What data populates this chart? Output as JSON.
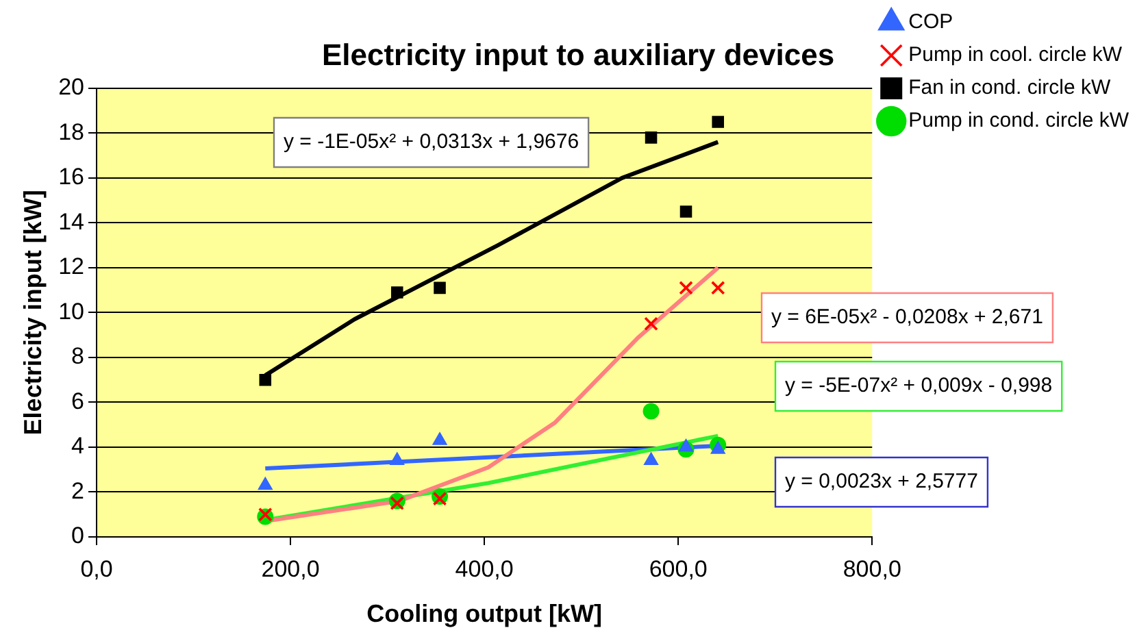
{
  "chart_data": {
    "type": "scatter",
    "title": "Electricity input to auxiliary devices",
    "xlabel": "Cooling output [kW]",
    "ylabel": "Electricity input [kW]",
    "xlim": [
      0,
      800
    ],
    "xticks": [
      {
        "value": 0,
        "label": "0,0"
      },
      {
        "value": 200,
        "label": "200,0"
      },
      {
        "value": 400,
        "label": "400,0"
      },
      {
        "value": 600,
        "label": "600,0"
      },
      {
        "value": 800,
        "label": "800,0"
      }
    ],
    "ylim": [
      0,
      20
    ],
    "yticks": [
      0,
      2,
      4,
      6,
      8,
      10,
      12,
      14,
      16,
      18,
      20
    ],
    "grid": "y",
    "legend": "top right",
    "x": [
      174,
      310,
      354,
      572,
      608,
      641
    ],
    "series": [
      {
        "name": "COP",
        "color": "#3366ff",
        "marker": "triangle",
        "values": [
          2.3,
          3.4,
          4.3,
          3.4,
          4.0,
          3.9
        ]
      },
      {
        "name": "Pump in cool. circle kW",
        "color": "#ff0000",
        "marker": "cross",
        "values": [
          1.0,
          1.5,
          1.7,
          9.5,
          11.1,
          11.1
        ]
      },
      {
        "name": "Fan in cond. circle kW",
        "color": "#000000",
        "marker": "square",
        "values": [
          7.0,
          10.9,
          11.1,
          17.8,
          14.5,
          18.5
        ]
      },
      {
        "name": "Pump in cond. circle kW",
        "color": "#00dd00",
        "marker": "circle",
        "values": [
          0.9,
          1.6,
          1.8,
          5.6,
          3.9,
          4.1
        ]
      },
      {
        "type": "line",
        "color": "#000000",
        "marker": "none",
        "x": [
          174,
          266,
          414,
          542,
          641
        ],
        "values": [
          7.2,
          9.7,
          13.0,
          16.0,
          17.6
        ]
      },
      {
        "type": "line",
        "color": "#ff8080",
        "marker": "none",
        "x": [
          174,
          312,
          404,
          473,
          559,
          641
        ],
        "values": [
          0.7,
          1.6,
          3.1,
          5.1,
          8.9,
          12.0
        ]
      },
      {
        "type": "line",
        "color": "#33ee33",
        "marker": "none",
        "x": [
          174,
          404,
          641
        ],
        "values": [
          0.75,
          2.4,
          4.5
        ]
      },
      {
        "type": "line",
        "color": "#3366ff",
        "marker": "none",
        "x": [
          174,
          641
        ],
        "values": [
          3.05,
          4.06
        ]
      }
    ],
    "annotations": [
      "y = -1E-05x² + 0,0313x + 1,9676",
      "y = 6E-05x² - 0,0208x + 2,671",
      "y = -5E-07x² + 0,009x - 0,998",
      "y = 0,0023x + 2,5777"
    ]
  }
}
